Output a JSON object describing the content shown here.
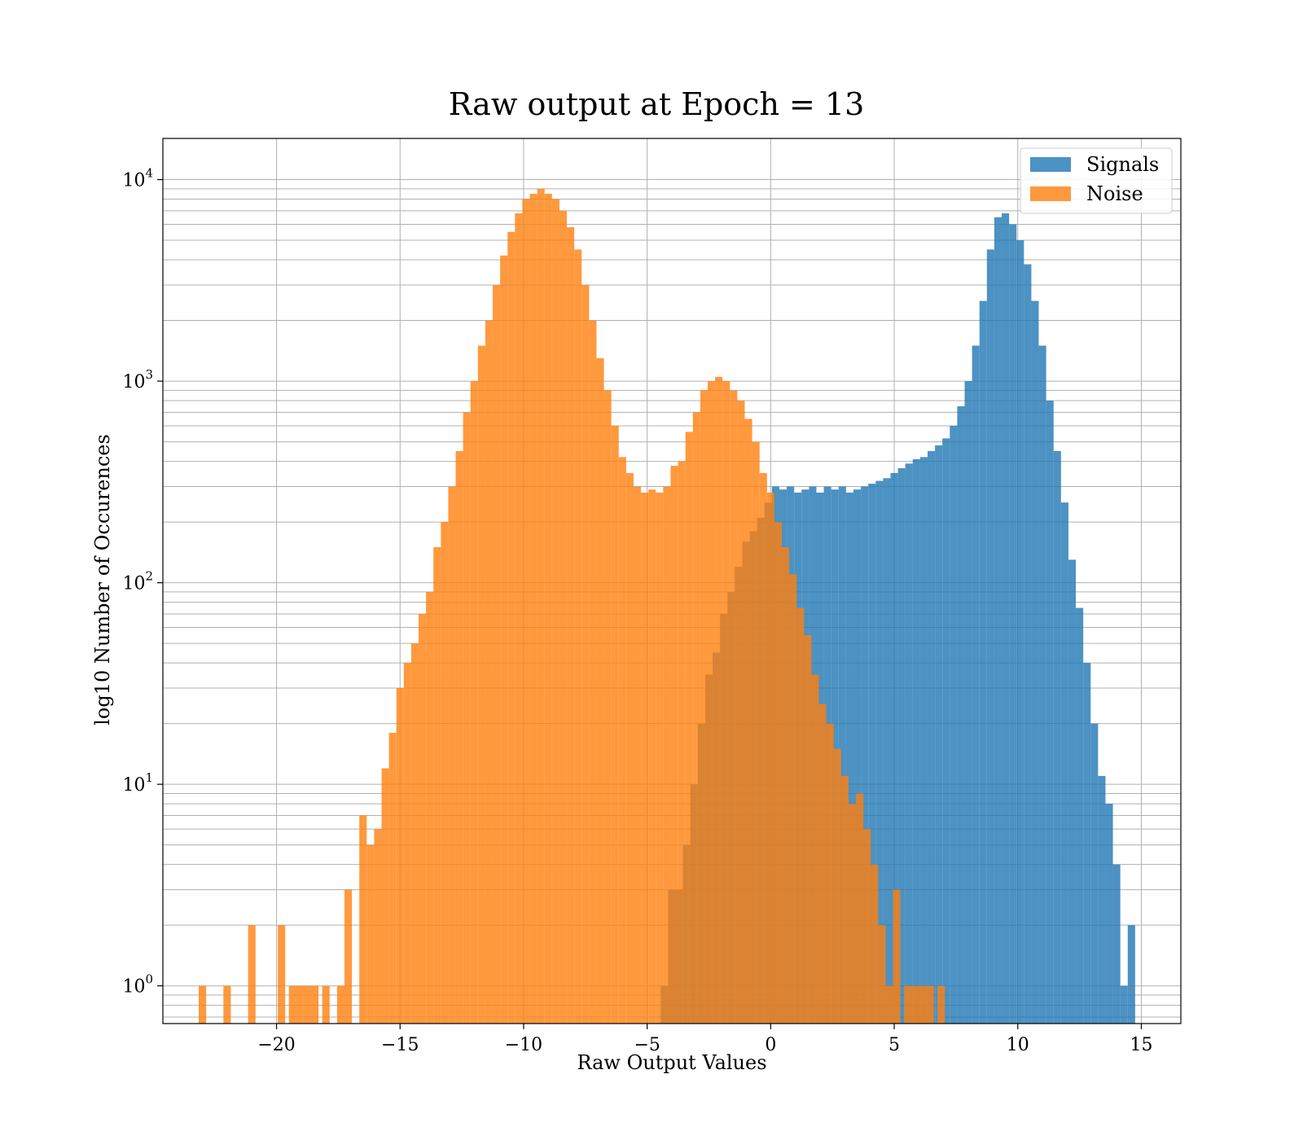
{
  "chart_data": {
    "type": "histogram",
    "title": "Raw output at Epoch = 13",
    "xlabel": "Raw Output Values",
    "ylabel": "log10 Number of Occurences",
    "xlim": [
      -24.6,
      16.6
    ],
    "ylim": [
      0.65,
      16000
    ],
    "y_scale": "log",
    "grid": true,
    "legend_position": "top-right",
    "x_ticks": [
      {
        "value": -20,
        "label": "−20"
      },
      {
        "value": -15,
        "label": "−15"
      },
      {
        "value": -10,
        "label": "−10"
      },
      {
        "value": -5,
        "label": "−5"
      },
      {
        "value": 0,
        "label": "0"
      },
      {
        "value": 5,
        "label": "5"
      },
      {
        "value": 10,
        "label": "10"
      },
      {
        "value": 15,
        "label": "15"
      }
    ],
    "y_ticks": [
      {
        "value": 1,
        "base": "10",
        "exp": "0"
      },
      {
        "value": 10,
        "base": "10",
        "exp": "1"
      },
      {
        "value": 100,
        "base": "10",
        "exp": "2"
      },
      {
        "value": 1000,
        "base": "10",
        "exp": "3"
      },
      {
        "value": 10000,
        "base": "10",
        "exp": "4"
      }
    ],
    "series": [
      {
        "name": "Signals",
        "color": "#1f77b4",
        "opacity": 0.8,
        "points": [
          [
            -4.3,
            1
          ],
          [
            -4.0,
            3
          ],
          [
            -3.7,
            3
          ],
          [
            -3.4,
            5
          ],
          [
            -3.1,
            10
          ],
          [
            -2.8,
            20
          ],
          [
            -2.5,
            35
          ],
          [
            -2.2,
            45
          ],
          [
            -1.9,
            70
          ],
          [
            -1.6,
            90
          ],
          [
            -1.3,
            120
          ],
          [
            -1.0,
            160
          ],
          [
            -0.7,
            180
          ],
          [
            -0.4,
            210
          ],
          [
            -0.1,
            250
          ],
          [
            0.2,
            300
          ],
          [
            0.5,
            290
          ],
          [
            0.8,
            300
          ],
          [
            1.1,
            280
          ],
          [
            1.4,
            290
          ],
          [
            1.7,
            300
          ],
          [
            2.0,
            280
          ],
          [
            2.3,
            300
          ],
          [
            2.6,
            290
          ],
          [
            2.9,
            300
          ],
          [
            3.2,
            280
          ],
          [
            3.5,
            290
          ],
          [
            3.8,
            300
          ],
          [
            4.1,
            310
          ],
          [
            4.4,
            320
          ],
          [
            4.7,
            330
          ],
          [
            5.0,
            350
          ],
          [
            5.3,
            370
          ],
          [
            5.6,
            390
          ],
          [
            5.9,
            410
          ],
          [
            6.2,
            420
          ],
          [
            6.5,
            450
          ],
          [
            6.8,
            480
          ],
          [
            7.1,
            520
          ],
          [
            7.4,
            600
          ],
          [
            7.7,
            750
          ],
          [
            8.0,
            1000
          ],
          [
            8.3,
            1500
          ],
          [
            8.6,
            2500
          ],
          [
            8.9,
            4500
          ],
          [
            9.2,
            6500
          ],
          [
            9.5,
            6800
          ],
          [
            9.8,
            6000
          ],
          [
            10.1,
            5000
          ],
          [
            10.4,
            3800
          ],
          [
            10.7,
            2500
          ],
          [
            11.0,
            1500
          ],
          [
            11.3,
            800
          ],
          [
            11.6,
            450
          ],
          [
            11.9,
            250
          ],
          [
            12.2,
            130
          ],
          [
            12.5,
            75
          ],
          [
            12.8,
            40
          ],
          [
            13.1,
            20
          ],
          [
            13.4,
            11
          ],
          [
            13.7,
            8
          ],
          [
            14.0,
            4
          ],
          [
            14.3,
            1
          ],
          [
            14.6,
            2
          ]
        ]
      },
      {
        "name": "Noise",
        "color": "#ff7f0e",
        "opacity": 0.8,
        "points": [
          [
            -23.0,
            1
          ],
          [
            -22.0,
            1
          ],
          [
            -21.0,
            2
          ],
          [
            -19.8,
            2
          ],
          [
            -19.2,
            1
          ],
          [
            -18.6,
            1
          ],
          [
            -18.0,
            1
          ],
          [
            -17.4,
            1
          ],
          [
            -17.1,
            3
          ],
          [
            -16.5,
            7
          ],
          [
            -16.2,
            5
          ],
          [
            -15.9,
            6
          ],
          [
            -15.6,
            12
          ],
          [
            -15.3,
            18
          ],
          [
            -15.0,
            30
          ],
          [
            -14.7,
            40
          ],
          [
            -14.4,
            50
          ],
          [
            -14.1,
            70
          ],
          [
            -13.8,
            90
          ],
          [
            -13.5,
            150
          ],
          [
            -13.2,
            200
          ],
          [
            -12.9,
            300
          ],
          [
            -12.6,
            450
          ],
          [
            -12.3,
            700
          ],
          [
            -12.0,
            1000
          ],
          [
            -11.7,
            1500
          ],
          [
            -11.4,
            2000
          ],
          [
            -11.1,
            3000
          ],
          [
            -10.8,
            4200
          ],
          [
            -10.5,
            5500
          ],
          [
            -10.2,
            6800
          ],
          [
            -9.9,
            8000
          ],
          [
            -9.6,
            8500
          ],
          [
            -9.3,
            9000
          ],
          [
            -9.0,
            8500
          ],
          [
            -8.7,
            8000
          ],
          [
            -8.4,
            7000
          ],
          [
            -8.1,
            5800
          ],
          [
            -7.8,
            4500
          ],
          [
            -7.5,
            3000
          ],
          [
            -7.2,
            2000
          ],
          [
            -6.9,
            1300
          ],
          [
            -6.6,
            900
          ],
          [
            -6.3,
            600
          ],
          [
            -6.0,
            420
          ],
          [
            -5.7,
            350
          ],
          [
            -5.4,
            300
          ],
          [
            -5.1,
            280
          ],
          [
            -4.8,
            290
          ],
          [
            -4.5,
            280
          ],
          [
            -4.2,
            300
          ],
          [
            -3.9,
            380
          ],
          [
            -3.6,
            400
          ],
          [
            -3.3,
            560
          ],
          [
            -3.0,
            700
          ],
          [
            -2.7,
            900
          ],
          [
            -2.4,
            1000
          ],
          [
            -2.1,
            1050
          ],
          [
            -1.8,
            1000
          ],
          [
            -1.5,
            900
          ],
          [
            -1.2,
            800
          ],
          [
            -0.9,
            650
          ],
          [
            -0.6,
            500
          ],
          [
            -0.3,
            350
          ],
          [
            0.0,
            280
          ],
          [
            0.3,
            200
          ],
          [
            0.6,
            150
          ],
          [
            0.9,
            110
          ],
          [
            1.2,
            75
          ],
          [
            1.5,
            55
          ],
          [
            1.8,
            35
          ],
          [
            2.1,
            25
          ],
          [
            2.4,
            20
          ],
          [
            2.7,
            15
          ],
          [
            3.0,
            11
          ],
          [
            3.3,
            8
          ],
          [
            3.6,
            9
          ],
          [
            3.9,
            6
          ],
          [
            4.2,
            4
          ],
          [
            4.5,
            2
          ],
          [
            4.8,
            1
          ],
          [
            5.1,
            3
          ],
          [
            5.7,
            1
          ],
          [
            6.3,
            1
          ],
          [
            6.9,
            1
          ]
        ]
      }
    ]
  }
}
